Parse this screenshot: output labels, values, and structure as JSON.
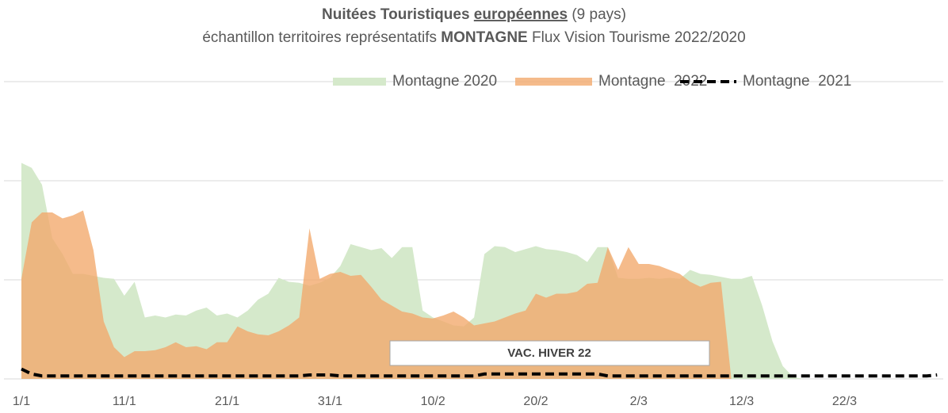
{
  "chart_data": {
    "type": "area",
    "title": {
      "bold": "Nuitées Touristiques",
      "underlined": "européennes",
      "rest": "(9 pays)"
    },
    "subtitle": {
      "pre": "échantillon territoires représentatifs",
      "bold": "MONTAGNE",
      "post": "Flux Vision Tourisme 2022/2020"
    },
    "annotation": "VAC. HIVER 22",
    "categories": [
      "1/1",
      null,
      null,
      null,
      null,
      null,
      null,
      null,
      null,
      null,
      "11/1",
      null,
      null,
      null,
      null,
      null,
      null,
      null,
      null,
      null,
      "21/1",
      null,
      null,
      null,
      null,
      null,
      null,
      null,
      null,
      null,
      "31/1",
      null,
      null,
      null,
      null,
      null,
      null,
      null,
      null,
      null,
      "10/2",
      null,
      null,
      null,
      null,
      null,
      null,
      null,
      null,
      null,
      "20/2",
      null,
      null,
      null,
      null,
      null,
      null,
      null,
      null,
      null,
      "2/3",
      null,
      null,
      null,
      null,
      null,
      null,
      null,
      null,
      null,
      "12/3",
      null,
      null,
      null,
      null,
      null,
      null,
      null,
      null,
      null,
      "22/3",
      null,
      null,
      null,
      null,
      null,
      null,
      null,
      null,
      null
    ],
    "ylim": [
      0,
      3
    ],
    "yticks": [
      0,
      1,
      2,
      3
    ],
    "grid": true,
    "legend": "top-right",
    "series": [
      {
        "name": "Montagne 2020",
        "type": "area",
        "color": "#d5e9cb",
        "values": [
          2.18,
          2.13,
          1.96,
          1.42,
          1.26,
          1.06,
          1.06,
          1.04,
          1.02,
          1.01,
          0.84,
          0.98,
          0.62,
          0.64,
          0.62,
          0.65,
          0.64,
          0.69,
          0.72,
          0.64,
          0.66,
          0.62,
          0.69,
          0.8,
          0.86,
          1.02,
          0.98,
          0.97,
          0.94,
          0.97,
          1.02,
          1.14,
          1.36,
          1.33,
          1.3,
          1.32,
          1.22,
          1.33,
          1.33,
          0.69,
          0.62,
          0.58,
          0.54,
          0.53,
          0.62,
          1.26,
          1.34,
          1.33,
          1.28,
          1.31,
          1.34,
          1.31,
          1.3,
          1.28,
          1.25,
          1.18,
          1.33,
          1.33,
          1.02,
          1.01,
          1.01,
          1.02,
          1.01,
          1.02,
          1.01,
          1.1,
          1.06,
          1.05,
          1.03,
          1.01,
          1.01,
          1.04,
          0.74,
          0.38,
          0.13,
          0.02,
          0,
          0,
          0,
          0,
          0,
          0,
          0,
          0,
          0,
          0,
          0,
          0,
          0,
          0
        ]
      },
      {
        "name": "Montagne  2022",
        "type": "area",
        "color": "#f2a86a",
        "values": [
          1.01,
          1.58,
          1.68,
          1.68,
          1.62,
          1.65,
          1.7,
          1.3,
          0.58,
          0.32,
          0.22,
          0.28,
          0.28,
          0.29,
          0.32,
          0.37,
          0.32,
          0.33,
          0.3,
          0.37,
          0.37,
          0.53,
          0.48,
          0.45,
          0.44,
          0.48,
          0.54,
          0.62,
          1.52,
          1.01,
          1.06,
          1.08,
          1.04,
          1.05,
          0.93,
          0.8,
          0.74,
          0.68,
          0.66,
          0.62,
          0.61,
          0.64,
          0.68,
          0.62,
          0.54,
          0.56,
          0.58,
          0.62,
          0.66,
          0.69,
          0.86,
          0.82,
          0.86,
          0.86,
          0.88,
          0.96,
          0.97,
          1.33,
          1.1,
          1.33,
          1.16,
          1.16,
          1.14,
          1.1,
          1.06,
          0.98,
          0.93,
          0.97,
          0.98,
          0,
          null,
          null,
          null,
          null,
          null,
          null,
          null,
          null,
          null,
          null,
          null,
          null,
          null,
          null,
          null,
          null,
          null,
          null,
          null,
          null
        ]
      },
      {
        "name": "Montagne  2021",
        "type": "line",
        "color": "#000000",
        "dash": true,
        "values": [
          0.1,
          0.05,
          0.03,
          0.03,
          0.03,
          0.03,
          0.03,
          0.03,
          0.03,
          0.03,
          0.03,
          0.03,
          0.03,
          0.03,
          0.03,
          0.03,
          0.03,
          0.03,
          0.03,
          0.03,
          0.03,
          0.03,
          0.03,
          0.03,
          0.03,
          0.03,
          0.03,
          0.03,
          0.04,
          0.04,
          0.04,
          0.03,
          0.03,
          0.03,
          0.03,
          0.03,
          0.03,
          0.03,
          0.03,
          0.03,
          0.03,
          0.03,
          0.03,
          0.03,
          0.03,
          0.05,
          0.05,
          0.05,
          0.05,
          0.05,
          0.05,
          0.05,
          0.05,
          0.05,
          0.05,
          0.05,
          0.05,
          0.03,
          0.03,
          0.03,
          0.03,
          0.03,
          0.03,
          0.03,
          0.03,
          0.03,
          0.03,
          0.03,
          0.03,
          0.03,
          0.03,
          0.03,
          0.03,
          0.03,
          0.03,
          0.03,
          0.03,
          0.03,
          0.03,
          0.03,
          0.03,
          0.03,
          0.03,
          0.03,
          0.03,
          0.03,
          0.03,
          0.03,
          0.03,
          0.04
        ]
      }
    ]
  }
}
